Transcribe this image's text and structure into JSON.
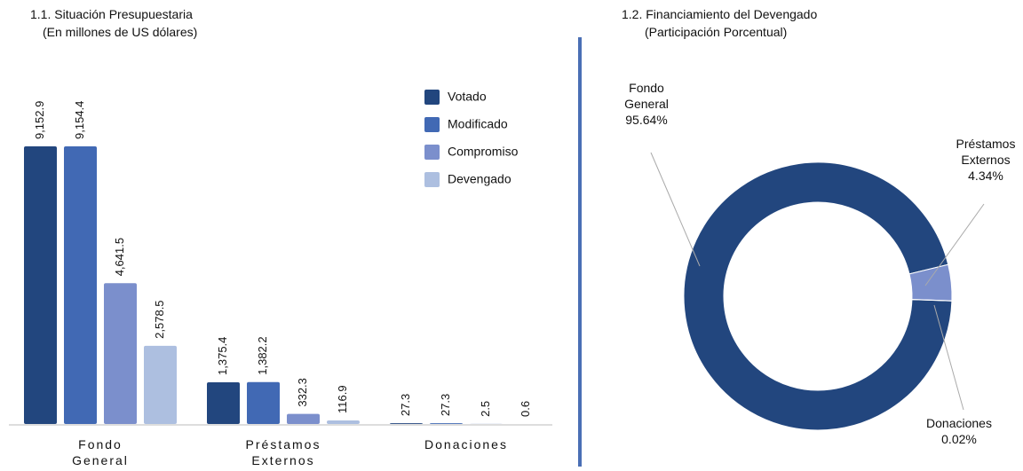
{
  "chart_data": [
    {
      "type": "bar",
      "title": "1.1. Situación Presupuestaria",
      "subtitle": "(En millones de US dólares)",
      "categories": [
        "Fondo General",
        "Préstamos Externos",
        "Donaciones"
      ],
      "series": [
        {
          "name": "Votado",
          "color": "#22467e",
          "values": [
            9152.9,
            1375.4,
            27.3
          ],
          "value_labels": [
            "9,152.9",
            "1,375.4",
            "27.3"
          ]
        },
        {
          "name": "Modificado",
          "color": "#4169b4",
          "values": [
            9154.4,
            1382.2,
            27.3
          ],
          "value_labels": [
            "9,154.4",
            "1,382.2",
            "27.3"
          ]
        },
        {
          "name": "Compromiso",
          "color": "#7b8fcc",
          "values": [
            4641.5,
            332.3,
            2.5
          ],
          "value_labels": [
            "4,641.5",
            "332.3",
            "2.5"
          ]
        },
        {
          "name": "Devengado",
          "color": "#adbfe0",
          "values": [
            2578.5,
            116.9,
            0.6
          ],
          "value_labels": [
            "2,578.5",
            "116.9",
            "0.6"
          ]
        }
      ],
      "legend": "top-right"
    },
    {
      "type": "donut",
      "title": "1.2. Financiamiento del Devengado",
      "subtitle": "(Participación Porcentual)",
      "categories": [
        "Fondo General",
        "Préstamos Externos",
        "Donaciones"
      ],
      "values": [
        95.64,
        4.34,
        0.02
      ],
      "value_labels": [
        "95.64%",
        "4.34%",
        "0.02%"
      ],
      "colors": [
        "#22467e",
        "#7b8fcc",
        "#b0c0e0"
      ]
    }
  ]
}
